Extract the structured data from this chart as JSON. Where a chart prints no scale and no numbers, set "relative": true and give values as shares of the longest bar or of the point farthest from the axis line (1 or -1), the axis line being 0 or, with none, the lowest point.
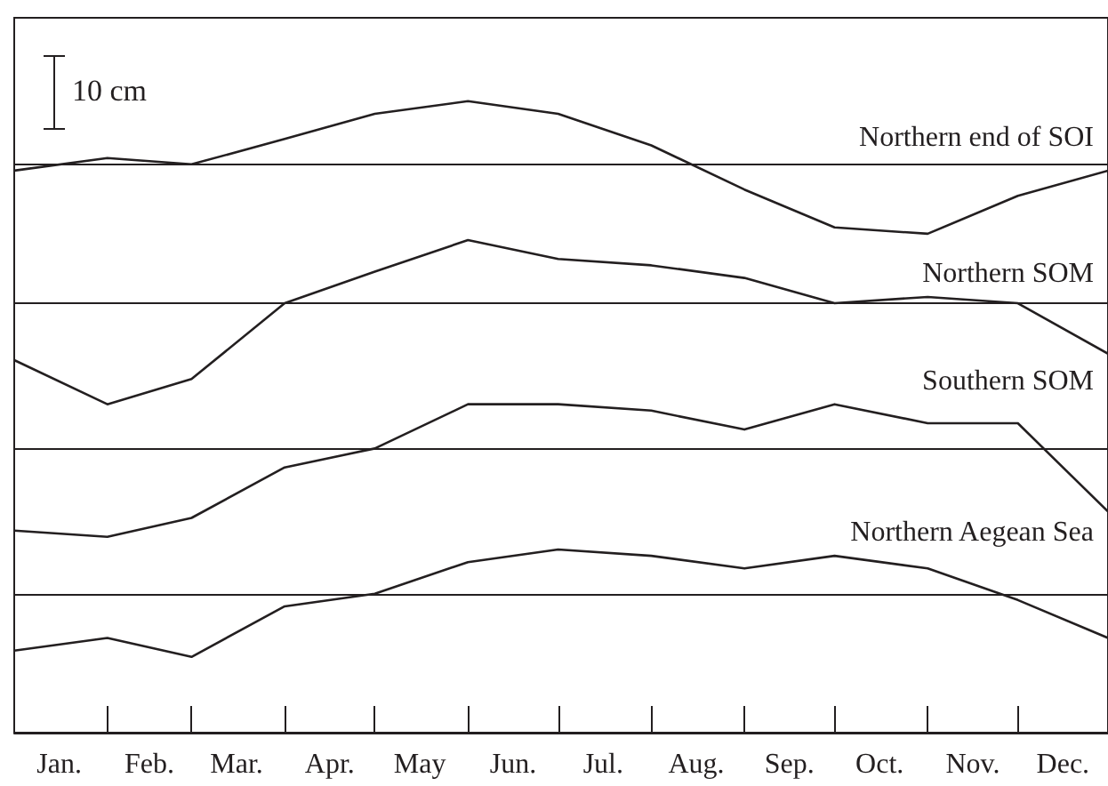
{
  "chart_data": {
    "type": "line",
    "relative": true,
    "annotations": [
      "10 cm"
    ],
    "x": [
      "--01-01",
      "--02-01",
      "--03-01",
      "--04-01",
      "--05-01",
      "--06-01",
      "--07-01",
      "--08-01",
      "--09-01",
      "--10-01",
      "--11-01",
      "--12-01",
      "--12-31"
    ],
    "xlim": [
      "--01-01",
      "--12-31"
    ],
    "xticks": [
      {
        "value": "--01-16",
        "label": "Jan."
      },
      {
        "value": "--02-01",
        "label": null
      },
      {
        "value": "--02-15",
        "label": "Feb."
      },
      {
        "value": "--03-01",
        "label": null
      },
      {
        "value": "--03-16",
        "label": "Mar."
      },
      {
        "value": "--04-01",
        "label": null
      },
      {
        "value": "--04-16",
        "label": "Apr."
      },
      {
        "value": "--05-01",
        "label": null
      },
      {
        "value": "--05-16",
        "label": "May"
      },
      {
        "value": "--06-01",
        "label": null
      },
      {
        "value": "--06-16",
        "label": "Jun."
      },
      {
        "value": "--07-01",
        "label": null
      },
      {
        "value": "--07-16",
        "label": "Jul."
      },
      {
        "value": "--08-01",
        "label": null
      },
      {
        "value": "--08-16",
        "label": "Aug."
      },
      {
        "value": "--09-01",
        "label": null
      },
      {
        "value": "--09-16",
        "label": "Sep."
      },
      {
        "value": "--10-01",
        "label": null
      },
      {
        "value": "--10-16",
        "label": "Oct."
      },
      {
        "value": "--11-01",
        "label": null
      },
      {
        "value": "--11-16",
        "label": "Nov."
      },
      {
        "value": "--12-01",
        "label": null
      },
      {
        "value": "--12-16",
        "label": "Dec."
      }
    ],
    "series": [
      {
        "name": "Northern end of SOI",
        "color": "#231f20",
        "values": [
          0.89,
          0.91,
          0.9,
          0.94,
          0.98,
          1,
          0.98,
          0.93,
          0.86,
          0.8,
          0.79,
          0.85,
          0.89
        ]
      },
      {
        "name": "Northern SOM",
        "color": "#231f20",
        "values": [
          0.59,
          0.52,
          0.56,
          0.68,
          0.73,
          0.78,
          0.75,
          0.74,
          0.72,
          0.68,
          0.69,
          0.68,
          0.6
        ]
      },
      {
        "name": "Southern SOM",
        "color": "#231f20",
        "values": [
          0.32,
          0.31,
          0.34,
          0.42,
          0.45,
          0.52,
          0.52,
          0.51,
          0.48,
          0.52,
          0.49,
          0.49,
          0.35
        ]
      },
      {
        "name": "Northern Aegean Sea",
        "color": "#231f20",
        "values": [
          0.13,
          0.15,
          0.12,
          0.2,
          0.22,
          0.27,
          0.29,
          0.28,
          0.26,
          0.28,
          0.26,
          0.21,
          0.15
        ]
      }
    ],
    "ref_lines": [
      {
        "axis": "y",
        "value": 0.9,
        "color": "#231f20"
      },
      {
        "axis": "y",
        "value": 0.68,
        "color": "#231f20"
      },
      {
        "axis": "y",
        "value": 0.45,
        "color": "#231f20"
      },
      {
        "axis": "y",
        "value": 0.22,
        "color": "#231f20"
      }
    ],
    "grid": false,
    "legend": false,
    "marker": "none",
    "line_style": "solid"
  }
}
